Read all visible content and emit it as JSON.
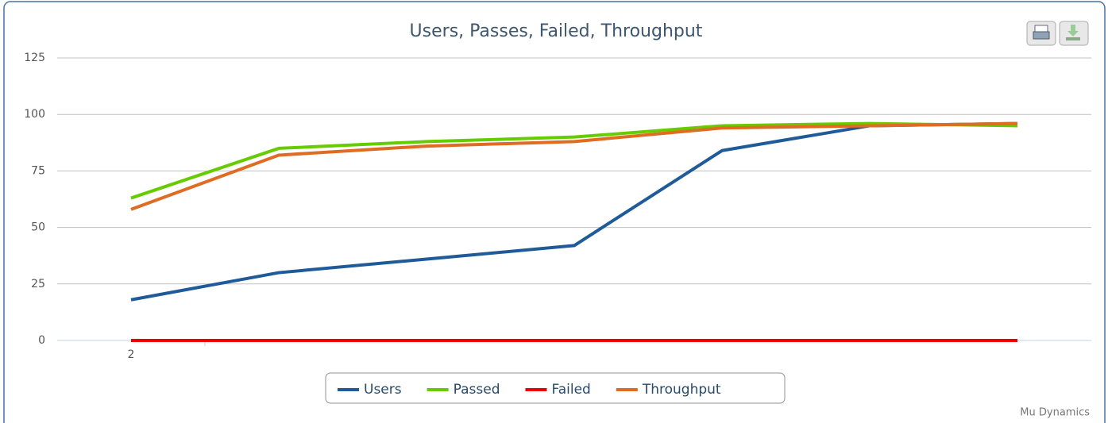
{
  "chart_data": {
    "type": "line",
    "title": "Users, Passes, Failed, Throughput",
    "categories": [
      "2",
      null,
      null,
      null,
      null,
      null,
      null
    ],
    "series": [
      {
        "name": "Users",
        "color": "#1f5b99",
        "values": [
          18,
          30,
          36,
          42,
          84,
          95,
          96
        ]
      },
      {
        "name": "Passed",
        "color": "#66cc00",
        "values": [
          63,
          85,
          88,
          90,
          95,
          96,
          95
        ]
      },
      {
        "name": "Failed",
        "color": "#ee0000",
        "values": [
          0,
          0,
          0,
          0,
          0,
          0,
          0
        ]
      },
      {
        "name": "Throughput",
        "color": "#e06c24",
        "values": [
          58,
          82,
          86,
          88,
          94,
          95,
          96
        ]
      }
    ],
    "ylim": [
      0,
      125
    ],
    "yticks": [
      0,
      25,
      50,
      75,
      100,
      125
    ],
    "grid": true,
    "legend": "bottom",
    "credit": "Mu Dynamics"
  }
}
